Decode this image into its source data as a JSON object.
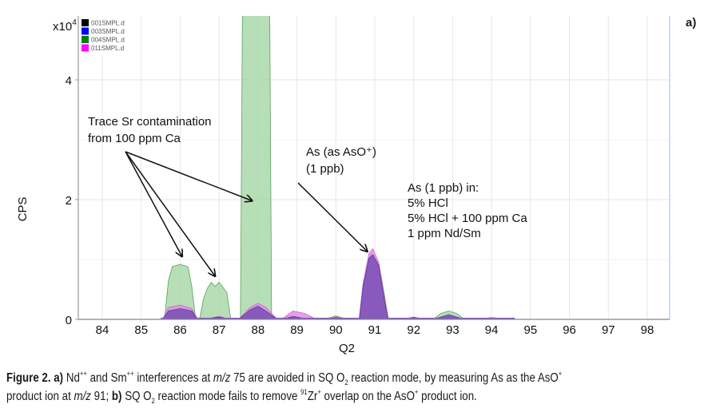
{
  "panel_label": "a)",
  "caption": {
    "fig": "Figure 2.",
    "a_label": "a)",
    "line1_a": "Nd",
    "line1_sup1": "++",
    "line1_b": " and Sm",
    "line1_sup2": "++",
    "line1_c": " interferences at ",
    "mz": "m/z",
    "line1_d": " 75 are avoided in SQ O",
    "sub2": "2",
    "line1_e": " reaction mode, by measuring As as the AsO",
    "sup_plus": "+",
    "line2_a": "product ion at ",
    "line2_b": " 91; ",
    "b_label": "b)",
    "line2_c": " SQ O",
    "line2_d": " reaction mode fails to remove ",
    "sup91": "91",
    "line2_e": "Zr",
    "line2_f": " overlap on the AsO",
    "line2_g": " product ion."
  },
  "chart_data": {
    "type": "area",
    "title": "",
    "xlabel": "Q2",
    "ylabel": "CPS",
    "y_multiplier_label": "x10",
    "y_multiplier_exp": "4",
    "xlim": [
      83.4,
      98.6
    ],
    "ylim": [
      0,
      5.2
    ],
    "xticks": [
      "84",
      "85",
      "86",
      "87",
      "88",
      "89",
      "90",
      "91",
      "92",
      "93",
      "94",
      "95",
      "96",
      "97",
      "98"
    ],
    "yticks": [
      "0",
      "2",
      "4"
    ],
    "grid": true,
    "legend_position": "top-left",
    "legend": [
      {
        "name": "001SMPL.d",
        "color": "#000000"
      },
      {
        "name": "003SMPL.d",
        "color": "#0000ff"
      },
      {
        "name": "004SMPL.d",
        "color": "#008000"
      },
      {
        "name": "011SMPL.d",
        "color": "#ff00ff"
      }
    ],
    "series": [
      {
        "name": "004SMPL.d (5% HCl + 100 ppm Ca)",
        "fill": "#9fd49f",
        "stroke": "#5aa05a",
        "points": [
          [
            85.6,
            0
          ],
          [
            85.7,
            0.65
          ],
          [
            85.8,
            0.88
          ],
          [
            86.0,
            0.92
          ],
          [
            86.2,
            0.88
          ],
          [
            86.3,
            0.55
          ],
          [
            86.4,
            0
          ],
          [
            86.5,
            0
          ],
          [
            86.6,
            0.35
          ],
          [
            86.7,
            0.52
          ],
          [
            86.8,
            0.62
          ],
          [
            86.9,
            0.55
          ],
          [
            87.0,
            0.62
          ],
          [
            87.2,
            0.45
          ],
          [
            87.3,
            0
          ],
          [
            87.55,
            0
          ],
          [
            87.6,
            5.2
          ],
          [
            88.3,
            5.2
          ],
          [
            88.35,
            0
          ],
          [
            89.7,
            0
          ],
          [
            90.0,
            0.06
          ],
          [
            90.3,
            0
          ],
          [
            90.6,
            0
          ],
          [
            90.7,
            0.6
          ],
          [
            90.9,
            1.1
          ],
          [
            91.1,
            0.95
          ],
          [
            91.25,
            0.4
          ],
          [
            91.35,
            0
          ],
          [
            91.7,
            0
          ],
          [
            92.0,
            0.04
          ],
          [
            92.3,
            0
          ],
          [
            92.5,
            0
          ],
          [
            92.7,
            0.1
          ],
          [
            92.9,
            0.14
          ],
          [
            93.1,
            0.1
          ],
          [
            93.3,
            0
          ],
          [
            93.6,
            0
          ],
          [
            94.0,
            0.03
          ],
          [
            94.4,
            0
          ]
        ]
      },
      {
        "name": "011SMPL.d (1 ppm Nd/Sm)",
        "fill": "#e48ee4",
        "stroke": "#d060d0",
        "points": [
          [
            85.55,
            0
          ],
          [
            85.7,
            0.2
          ],
          [
            86.0,
            0.24
          ],
          [
            86.3,
            0.18
          ],
          [
            86.45,
            0
          ],
          [
            86.6,
            0
          ],
          [
            87.0,
            0.05
          ],
          [
            87.3,
            0
          ],
          [
            87.5,
            0
          ],
          [
            87.8,
            0.2
          ],
          [
            88.0,
            0.27
          ],
          [
            88.2,
            0.2
          ],
          [
            88.5,
            0
          ],
          [
            88.6,
            0
          ],
          [
            88.9,
            0.14
          ],
          [
            89.2,
            0.1
          ],
          [
            89.5,
            0
          ],
          [
            89.7,
            0
          ],
          [
            90.0,
            0.04
          ],
          [
            90.3,
            0
          ],
          [
            90.6,
            0
          ],
          [
            90.7,
            0.6
          ],
          [
            90.85,
            1.1
          ],
          [
            90.95,
            1.18
          ],
          [
            91.1,
            0.95
          ],
          [
            91.25,
            0.35
          ],
          [
            91.35,
            0
          ],
          [
            91.7,
            0
          ],
          [
            92.0,
            0.03
          ],
          [
            92.3,
            0
          ],
          [
            92.5,
            0
          ],
          [
            92.9,
            0.06
          ],
          [
            93.3,
            0
          ],
          [
            93.6,
            0
          ],
          [
            94.0,
            0.03
          ],
          [
            94.5,
            0
          ]
        ]
      },
      {
        "name": "001SMPL.d / 003SMPL.d (5% HCl)",
        "fill": "#7a4fb8",
        "stroke": "#5d3a96",
        "points": [
          [
            85.55,
            0
          ],
          [
            85.7,
            0.14
          ],
          [
            86.0,
            0.18
          ],
          [
            86.3,
            0.14
          ],
          [
            86.45,
            0
          ],
          [
            86.6,
            0
          ],
          [
            87.0,
            0.04
          ],
          [
            87.3,
            0
          ],
          [
            87.5,
            0
          ],
          [
            87.8,
            0.16
          ],
          [
            88.0,
            0.22
          ],
          [
            88.2,
            0.14
          ],
          [
            88.5,
            0
          ],
          [
            88.6,
            0
          ],
          [
            88.9,
            0.05
          ],
          [
            89.3,
            0
          ],
          [
            89.7,
            0
          ],
          [
            90.0,
            0.03
          ],
          [
            90.3,
            0
          ],
          [
            90.6,
            0
          ],
          [
            90.7,
            0.55
          ],
          [
            90.85,
            1.02
          ],
          [
            90.95,
            1.08
          ],
          [
            91.1,
            0.9
          ],
          [
            91.25,
            0.3
          ],
          [
            91.35,
            0
          ],
          [
            91.7,
            0
          ],
          [
            92.0,
            0.03
          ],
          [
            92.3,
            0
          ],
          [
            92.5,
            0
          ],
          [
            92.9,
            0.08
          ],
          [
            93.3,
            0
          ],
          [
            93.6,
            0
          ],
          [
            94.0,
            0.02
          ],
          [
            94.5,
            0
          ]
        ]
      }
    ],
    "annotations": [
      {
        "id": "sr",
        "lines": [
          "Trace Sr contamination",
          "from 100 ppm Ca"
        ],
        "color": "#111111",
        "arrows_to": [
          [
            86.05,
            1.05
          ],
          [
            86.9,
            0.72
          ],
          [
            87.85,
            1.98
          ]
        ]
      },
      {
        "id": "as",
        "lines": [
          "As (as AsO⁺)",
          "(1 ppb)"
        ],
        "color": "#111111",
        "arrows_to": [
          [
            90.85,
            1.08
          ]
        ]
      },
      {
        "id": "key_title",
        "lines": [
          "As (1 ppb) in:"
        ],
        "color": "#111111"
      },
      {
        "id": "key_hcl",
        "lines": [
          "5% HCl"
        ],
        "color": "#5b7fb0"
      },
      {
        "id": "key_ca",
        "lines": [
          "5% HCl + 100 ppm Ca"
        ],
        "color": "#7cbf4a"
      },
      {
        "id": "key_ndsm",
        "lines": [
          "1 ppm Nd/Sm"
        ],
        "color": "#a0206e"
      }
    ]
  }
}
